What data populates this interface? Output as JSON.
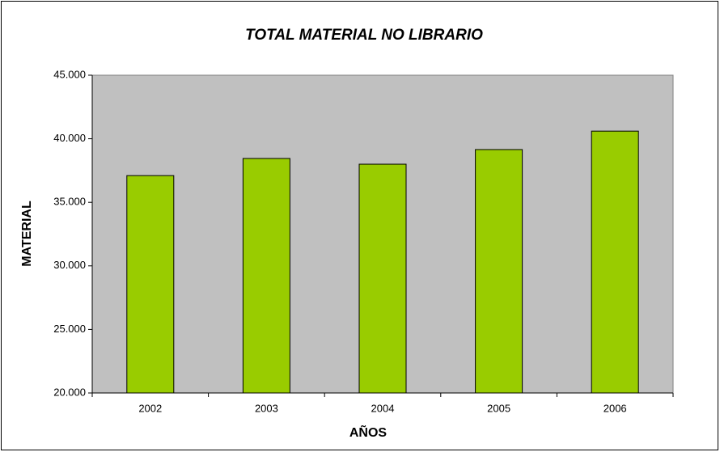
{
  "chart_data": {
    "type": "bar",
    "title": "TOTAL MATERIAL NO LIBRARIO",
    "x_label": "AÑOS",
    "y_label": "MATERIAL",
    "categories": [
      "2002",
      "2003",
      "2004",
      "2005",
      "2006"
    ],
    "values": [
      37100,
      38450,
      38000,
      39150,
      40600
    ],
    "color": "#99cc00",
    "plot_background": "#c0c0c0",
    "ylim": [
      20000,
      45000
    ],
    "yticks": [
      {
        "value": 20000,
        "label": "20.000"
      },
      {
        "value": 25000,
        "label": "25.000"
      },
      {
        "value": 30000,
        "label": "30.000"
      },
      {
        "value": 35000,
        "label": "35.000"
      },
      {
        "value": 40000,
        "label": "40.000"
      },
      {
        "value": 45000,
        "label": "45.000"
      }
    ],
    "grid": false
  }
}
